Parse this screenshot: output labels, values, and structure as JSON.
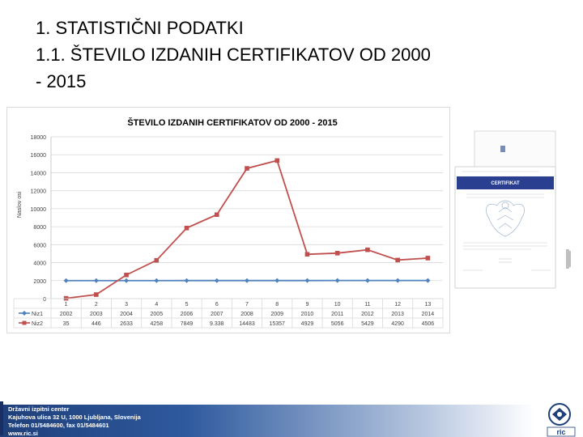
{
  "slide": {
    "title_line1": "1. STATISTIČNI PODATKI",
    "title_line2": "1.1. ŠTEVILO IZDANIH CERTIFIKATOV OD 2000",
    "title_line3": "- 2015"
  },
  "chart_data": {
    "type": "line",
    "title": "ŠTEVILO IZDANIH CERTIFIKATOV OD 2000 - 2015",
    "ylabel": "Naslov osi",
    "xlabel": "",
    "ylim": [
      0,
      18000
    ],
    "yticks": [
      "0",
      "2000",
      "4000",
      "6000",
      "8000",
      "10000",
      "12000",
      "14000",
      "16000",
      "18000"
    ],
    "categories": [
      "1",
      "2",
      "3",
      "4",
      "5",
      "6",
      "7",
      "8",
      "9",
      "10",
      "11",
      "12",
      "13"
    ],
    "grid": true,
    "legend": "table-bottom",
    "series": [
      {
        "name": "Niz1",
        "color": "#4f81bd",
        "marker": "diamond",
        "values": [
          2002,
          2003,
          2004,
          2005,
          2006,
          2007,
          2008,
          2009,
          2010,
          2011,
          2012,
          2013,
          2014
        ],
        "labels": [
          "2002",
          "2003",
          "2004",
          "2005",
          "2006",
          "2007",
          "2008",
          "2009",
          "2010",
          "2011",
          "2012",
          "2013",
          "2014"
        ]
      },
      {
        "name": "Niz2",
        "color": "#c0504d",
        "marker": "square",
        "values": [
          35,
          446,
          2633,
          4258,
          7849,
          9338,
          14483,
          15357,
          4929,
          5056,
          5429,
          4290,
          4506
        ],
        "labels": [
          "35",
          "446",
          "2633",
          "4258",
          "7849",
          "9.338",
          "14483",
          "15357",
          "4929",
          "5056",
          "5429",
          "4290",
          "4506"
        ]
      }
    ]
  },
  "certificate": {
    "heading": "CERTIFIKAT"
  },
  "footer": {
    "line1": "Državni izpitni center",
    "line2": "Kajuhova ulica 32 U, 1000 Ljubljana, Slovenija",
    "line3": "Telefon 01/5484600, fax 01/5484601",
    "line4": "www.ric.si",
    "logo_text": "ric"
  }
}
